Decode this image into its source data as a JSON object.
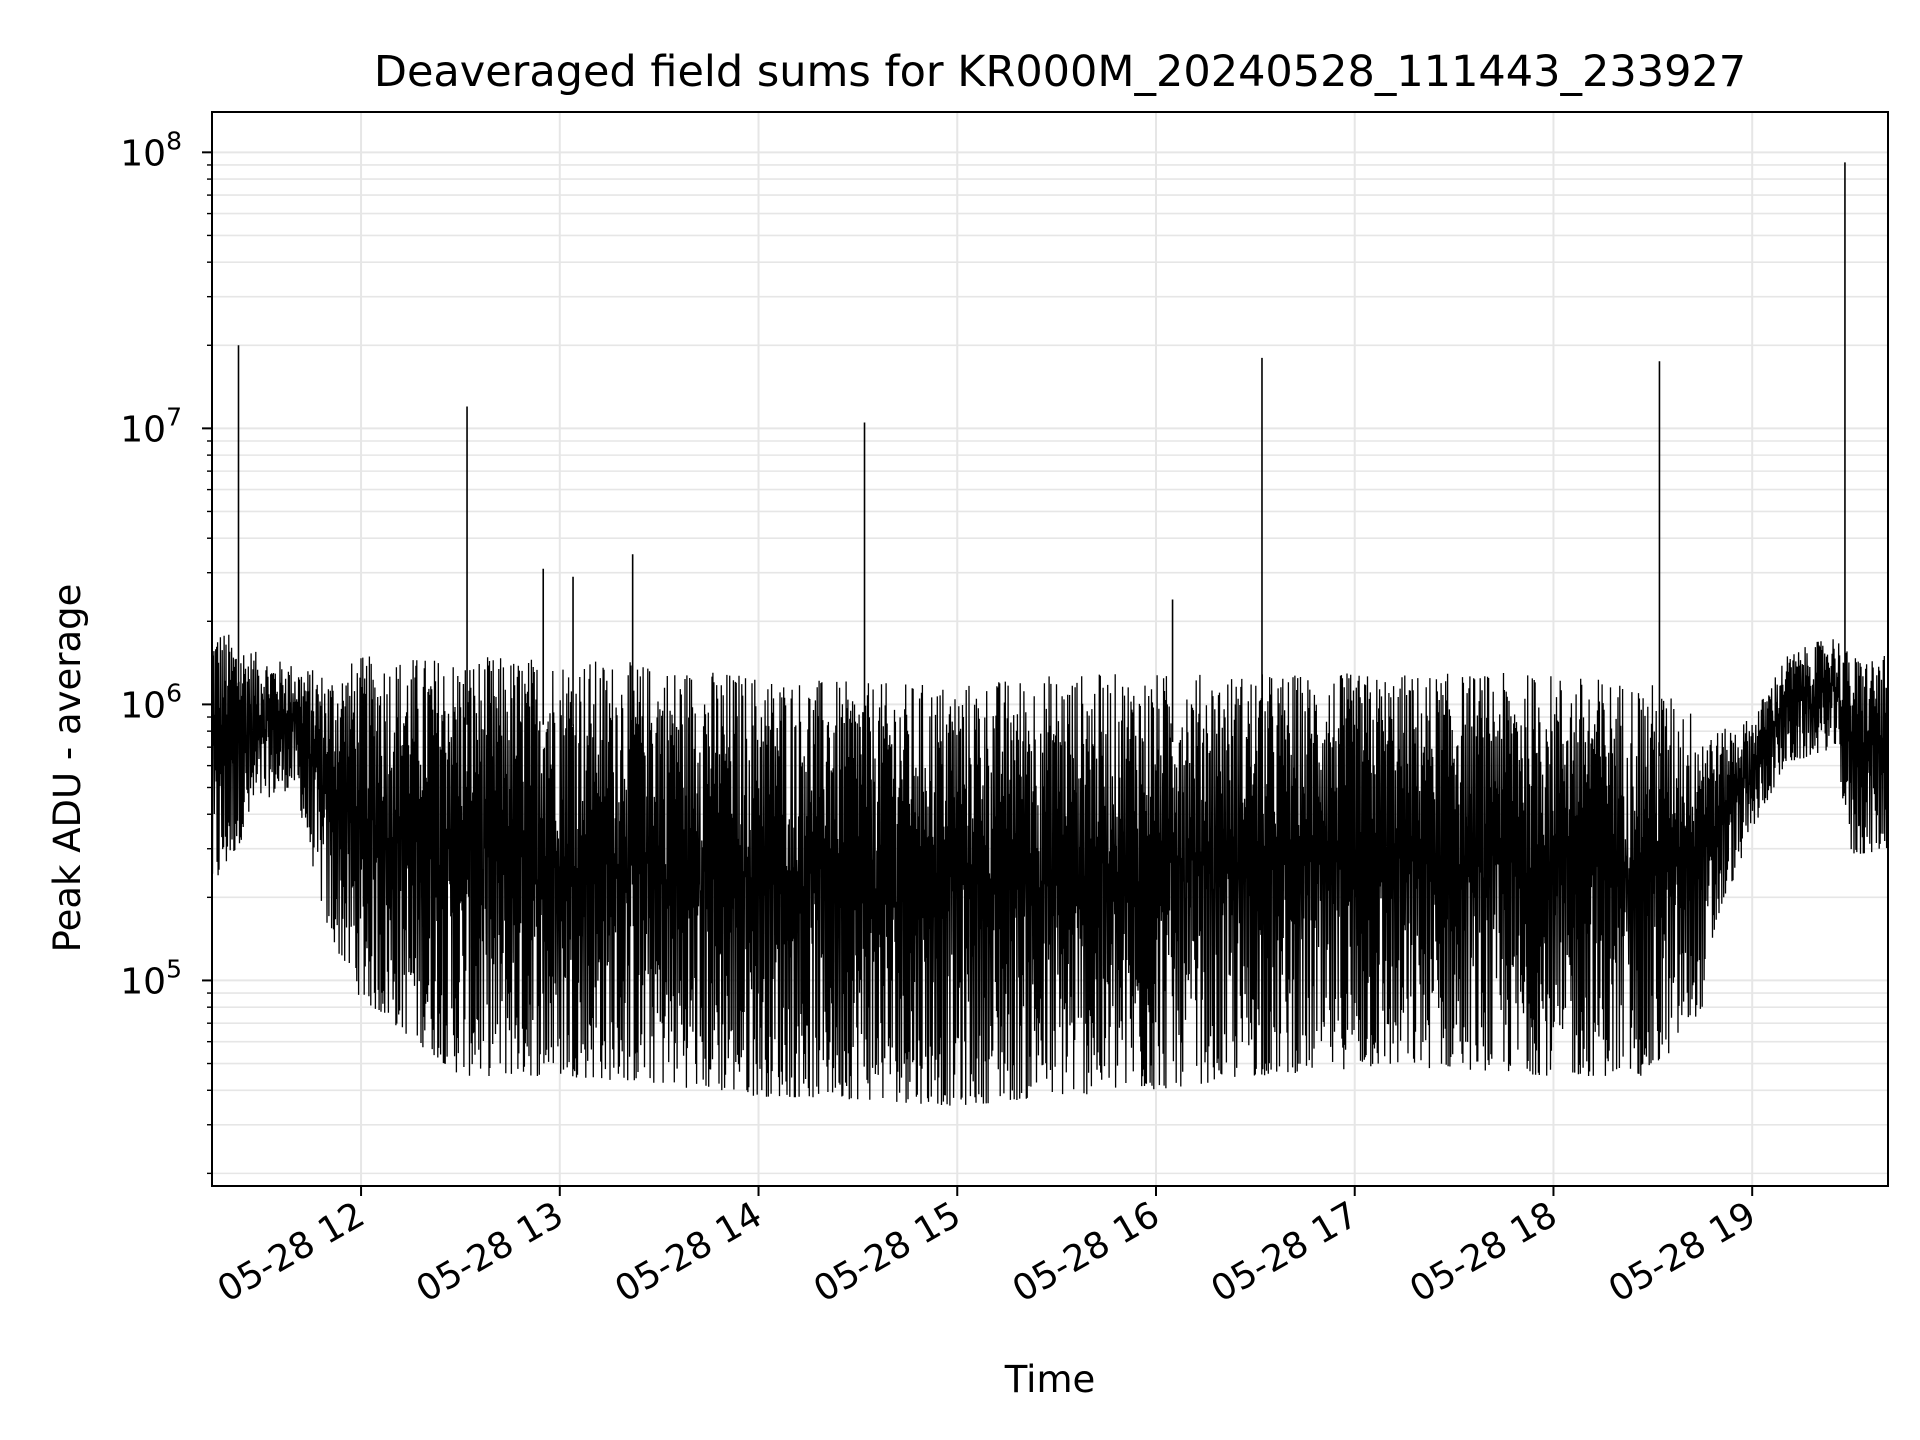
{
  "chart_data": {
    "type": "line",
    "title": "Deaveraged field sums for KR000M_20240528_111443_233927",
    "xlabel": "Time",
    "ylabel": "Peak ADU - average",
    "yscale": "log",
    "ylim": [
      18000,
      140000000
    ],
    "xlim": [
      "2024-05-28 11:15",
      "2024-05-28 19:41"
    ],
    "grid": true,
    "line_color": "#000000",
    "grid_color": "#e6e6e6",
    "x_ticks": [
      {
        "value": "2024-05-28 12:00",
        "label": "05-28 12"
      },
      {
        "value": "2024-05-28 13:00",
        "label": "05-28 13"
      },
      {
        "value": "2024-05-28 14:00",
        "label": "05-28 14"
      },
      {
        "value": "2024-05-28 15:00",
        "label": "05-28 15"
      },
      {
        "value": "2024-05-28 16:00",
        "label": "05-28 16"
      },
      {
        "value": "2024-05-28 17:00",
        "label": "05-28 17"
      },
      {
        "value": "2024-05-28 18:00",
        "label": "05-28 18"
      },
      {
        "value": "2024-05-28 19:00",
        "label": "05-28 19"
      }
    ],
    "y_ticks": [
      {
        "value": 100000,
        "base": "10",
        "exp": "5"
      },
      {
        "value": 1000000,
        "base": "10",
        "exp": "6"
      },
      {
        "value": 10000000,
        "base": "10",
        "exp": "7"
      },
      {
        "value": 100000000,
        "base": "10",
        "exp": "8"
      }
    ],
    "spikes": [
      {
        "x": "2024-05-28 11:23",
        "y": 20000000
      },
      {
        "x": "2024-05-28 12:32",
        "y": 12000000
      },
      {
        "x": "2024-05-28 12:55",
        "y": 3100000
      },
      {
        "x": "2024-05-28 13:04",
        "y": 2900000
      },
      {
        "x": "2024-05-28 13:22",
        "y": 3500000
      },
      {
        "x": "2024-05-28 14:32",
        "y": 10500000
      },
      {
        "x": "2024-05-28 16:05",
        "y": 2400000
      },
      {
        "x": "2024-05-28 16:32",
        "y": 18000000
      },
      {
        "x": "2024-05-28 18:32",
        "y": 17500000
      },
      {
        "x": "2024-05-28 19:28",
        "y": 92000000
      }
    ],
    "envelope": [
      {
        "x": "2024-05-28 11:15",
        "high": 2000000,
        "low": 200000
      },
      {
        "x": "2024-05-28 11:30",
        "high": 1500000,
        "low": 450000
      },
      {
        "x": "2024-05-28 11:40",
        "high": 1400000,
        "low": 500000
      },
      {
        "x": "2024-05-28 11:50",
        "high": 1300000,
        "low": 150000
      },
      {
        "x": "2024-05-28 12:00",
        "high": 1500000,
        "low": 85000
      },
      {
        "x": "2024-05-28 12:30",
        "high": 1500000,
        "low": 45000
      },
      {
        "x": "2024-05-28 13:00",
        "high": 1500000,
        "low": 45000
      },
      {
        "x": "2024-05-28 13:30",
        "high": 1400000,
        "low": 42000
      },
      {
        "x": "2024-05-28 14:00",
        "high": 1300000,
        "low": 38000
      },
      {
        "x": "2024-05-28 14:30",
        "high": 1200000,
        "low": 37000
      },
      {
        "x": "2024-05-28 15:00",
        "high": 1200000,
        "low": 35000
      },
      {
        "x": "2024-05-28 15:30",
        "high": 1300000,
        "low": 38000
      },
      {
        "x": "2024-05-28 16:00",
        "high": 1300000,
        "low": 40000
      },
      {
        "x": "2024-05-28 16:30",
        "high": 1300000,
        "low": 45000
      },
      {
        "x": "2024-05-28 17:00",
        "high": 1300000,
        "low": 48000
      },
      {
        "x": "2024-05-28 17:30",
        "high": 1300000,
        "low": 48000
      },
      {
        "x": "2024-05-28 18:00",
        "high": 1300000,
        "low": 45000
      },
      {
        "x": "2024-05-28 18:30",
        "high": 1200000,
        "low": 45000
      },
      {
        "x": "2024-05-28 18:45",
        "high": 900000,
        "low": 80000
      },
      {
        "x": "2024-05-28 18:50",
        "high": 800000,
        "low": 170000
      },
      {
        "x": "2024-05-28 19:00",
        "high": 900000,
        "low": 350000
      },
      {
        "x": "2024-05-28 19:10",
        "high": 1500000,
        "low": 600000
      },
      {
        "x": "2024-05-28 19:25",
        "high": 1800000,
        "low": 700000
      },
      {
        "x": "2024-05-28 19:30",
        "high": 1500000,
        "low": 280000
      },
      {
        "x": "2024-05-28 19:41",
        "high": 1500000,
        "low": 300000
      }
    ]
  }
}
